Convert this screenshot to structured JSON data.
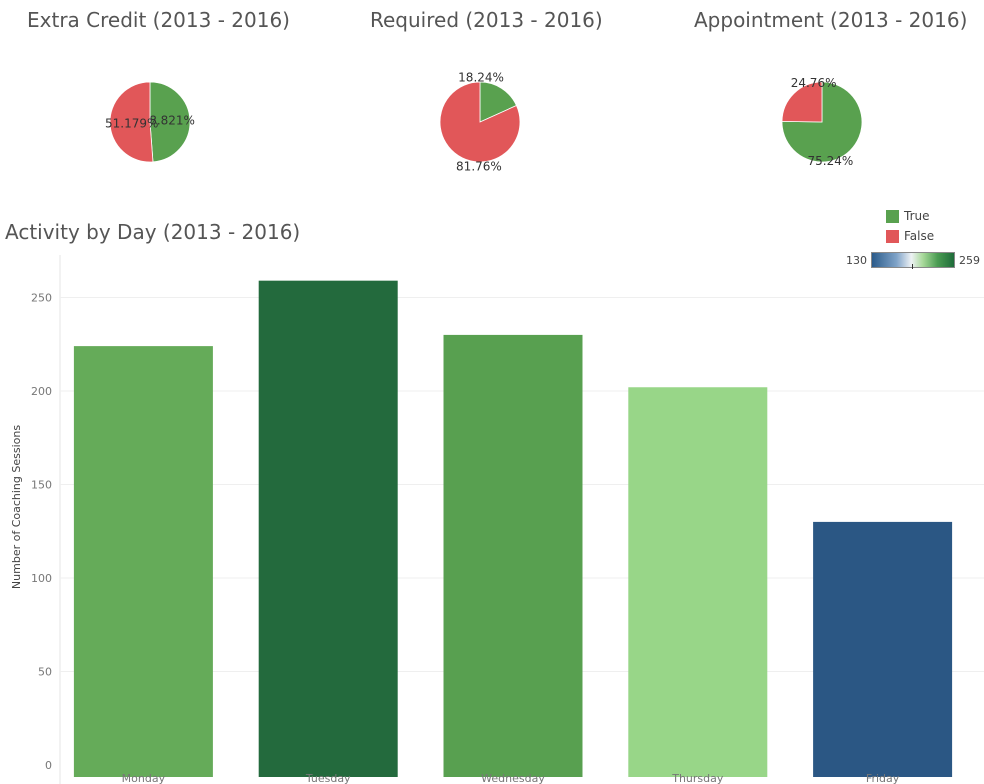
{
  "chart_data": [
    {
      "type": "pie",
      "title": "Extra Credit (2013 - 2016)",
      "slices": [
        {
          "name": "True",
          "value": 48.821,
          "label": "48.821%",
          "color": "#59a14f"
        },
        {
          "name": "False",
          "value": 51.179,
          "label": "51.179%",
          "color": "#e15759"
        }
      ]
    },
    {
      "type": "pie",
      "title": "Required  (2013 - 2016)",
      "slices": [
        {
          "name": "True",
          "value": 18.24,
          "label": "18.24%",
          "color": "#59a14f"
        },
        {
          "name": "False",
          "value": 81.76,
          "label": "81.76%",
          "color": "#e15759"
        }
      ]
    },
    {
      "type": "pie",
      "title": "Appointment  (2013 - 2016)",
      "slices": [
        {
          "name": "True",
          "value": 75.24,
          "label": "75.24%",
          "color": "#59a14f"
        },
        {
          "name": "False",
          "value": 24.76,
          "label": "24.76%",
          "color": "#e15759"
        }
      ]
    },
    {
      "type": "bar",
      "title": "Activity by Day (2013 - 2016)",
      "categories": [
        "Monday",
        "Tuesday",
        "Wednesday",
        "Thursday",
        "Friday"
      ],
      "values": [
        224,
        259,
        230,
        202,
        130
      ],
      "colors": [
        "#65ab59",
        "#236a3d",
        "#58a050",
        "#98d688",
        "#2b5784"
      ],
      "ylabel": "Number of Coaching Sessions",
      "ylim": [
        0,
        270
      ],
      "yticks": [
        0,
        50,
        100,
        150,
        200,
        250
      ],
      "grid": true
    }
  ],
  "legend": {
    "items": [
      {
        "label": "True",
        "color": "#59a14f"
      },
      {
        "label": "False",
        "color": "#e15759"
      }
    ]
  },
  "color_ramp": {
    "min": "130",
    "max": "259"
  }
}
